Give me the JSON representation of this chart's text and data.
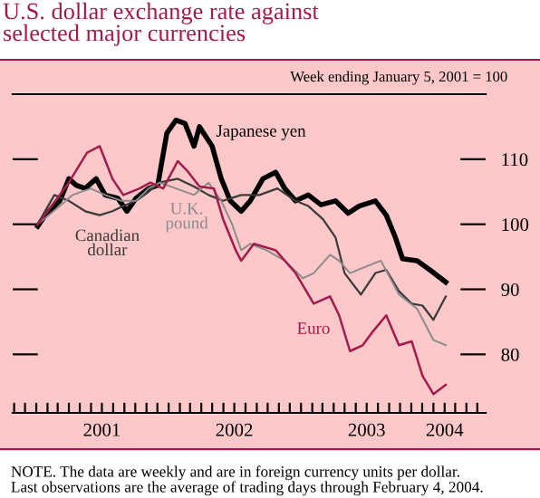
{
  "chart_data": {
    "type": "line",
    "title": "U.S. dollar exchange rate against\nselected major currencies",
    "subtitle": "Week ending January 5, 2001 = 100",
    "annotations": [
      "NOTE. The data are weekly and are in foreign currency units per dollar.\nLast observations are the average of trading days through February 4, 2004."
    ],
    "xlim": [
      "2000-10-28",
      "2004-05-24"
    ],
    "xticks": [
      {
        "value": "2000-11-01",
        "label": null
      },
      {
        "value": "2000-12-01",
        "label": null
      },
      {
        "value": "2001-01-01",
        "label": null
      },
      {
        "value": "2001-02-01",
        "label": null
      },
      {
        "value": "2001-03-01",
        "label": null
      },
      {
        "value": "2001-04-01",
        "label": null
      },
      {
        "value": "2001-05-01",
        "label": null
      },
      {
        "value": "2001-06-01",
        "label": null
      },
      {
        "value": "2001-07-01",
        "label": "2001"
      },
      {
        "value": "2001-08-01",
        "label": null
      },
      {
        "value": "2001-09-01",
        "label": null
      },
      {
        "value": "2001-10-01",
        "label": null
      },
      {
        "value": "2001-11-01",
        "label": null
      },
      {
        "value": "2001-12-01",
        "label": null
      },
      {
        "value": "2002-01-01",
        "label": null
      },
      {
        "value": "2002-02-01",
        "label": null
      },
      {
        "value": "2002-03-01",
        "label": null
      },
      {
        "value": "2002-04-01",
        "label": null
      },
      {
        "value": "2002-05-01",
        "label": null
      },
      {
        "value": "2002-06-01",
        "label": null
      },
      {
        "value": "2002-07-01",
        "label": "2002"
      },
      {
        "value": "2002-08-01",
        "label": null
      },
      {
        "value": "2002-09-01",
        "label": null
      },
      {
        "value": "2002-10-01",
        "label": null
      },
      {
        "value": "2002-11-01",
        "label": null
      },
      {
        "value": "2002-12-01",
        "label": null
      },
      {
        "value": "2003-01-01",
        "label": null
      },
      {
        "value": "2003-02-01",
        "label": null
      },
      {
        "value": "2003-03-01",
        "label": null
      },
      {
        "value": "2003-04-01",
        "label": null
      },
      {
        "value": "2003-05-01",
        "label": null
      },
      {
        "value": "2003-06-01",
        "label": null
      },
      {
        "value": "2003-07-01",
        "label": "2003"
      },
      {
        "value": "2003-08-01",
        "label": null
      },
      {
        "value": "2003-09-01",
        "label": null
      },
      {
        "value": "2003-10-01",
        "label": null
      },
      {
        "value": "2003-11-01",
        "label": null
      },
      {
        "value": "2003-12-01",
        "label": null
      },
      {
        "value": "2004-01-01",
        "label": null
      },
      {
        "value": "2004-02-01",
        "label": "2004"
      },
      {
        "value": "2004-03-01",
        "label": null
      },
      {
        "value": "2004-04-01",
        "label": null
      },
      {
        "value": "2004-05-01",
        "label": null
      }
    ],
    "ylim": [
      71,
      120
    ],
    "yticks": [
      80,
      90,
      100,
      110
    ],
    "grid": false,
    "legend": false,
    "marker": "none",
    "line_style": "solid",
    "series": [
      {
        "name": "Japanese yen",
        "color": "#000000",
        "x": [
          "2001-01-05",
          "2001-01-26",
          "2001-03-07",
          "2001-04-01",
          "2001-04-21",
          "2001-05-16",
          "2001-06-15",
          "2001-07-10",
          "2001-08-14",
          "2001-09-08",
          "2001-10-03",
          "2001-11-07",
          "2001-12-02",
          "2001-12-27",
          "2002-01-21",
          "2002-02-15",
          "2002-03-12",
          "2002-03-27",
          "2002-05-01",
          "2002-05-26",
          "2002-06-20",
          "2002-07-20",
          "2002-08-14",
          "2002-09-18",
          "2002-10-23",
          "2002-11-17",
          "2002-12-17",
          "2003-01-21",
          "2003-02-25",
          "2003-04-06",
          "2003-05-11",
          "2003-06-10",
          "2003-07-25",
          "2003-08-24",
          "2003-09-18",
          "2003-10-08",
          "2003-11-17",
          "2003-12-22",
          "2004-02-04"
        ],
        "values": [
          99.7,
          101.4,
          103.6,
          107,
          106,
          105.5,
          107,
          104.5,
          104,
          102,
          104,
          105.5,
          106,
          114,
          116,
          115.5,
          112,
          115,
          112,
          107,
          103.6,
          102,
          103.6,
          107,
          108,
          105.5,
          103.6,
          104.5,
          103,
          103.6,
          101.7,
          102.8,
          103.6,
          101.4,
          98,
          94.7,
          94.4,
          93,
          91.1
        ]
      },
      {
        "name": "Canadian dollar",
        "color": "#3a3a3a",
        "x": [
          "2001-01-05",
          "2001-02-20",
          "2001-04-01",
          "2001-05-16",
          "2001-06-25",
          "2001-07-30",
          "2001-08-29",
          "2001-10-03",
          "2001-11-07",
          "2001-12-07",
          "2002-01-26",
          "2002-03-12",
          "2002-04-21",
          "2002-05-31",
          "2002-07-20",
          "2002-09-08",
          "2002-10-28",
          "2002-12-17",
          "2003-01-21",
          "2003-03-02",
          "2003-04-06",
          "2003-05-01",
          "2003-06-15",
          "2003-07-25",
          "2003-08-24",
          "2003-09-28",
          "2003-11-02",
          "2003-12-02",
          "2004-01-01",
          "2004-02-04"
        ],
        "values": [
          100,
          104.5,
          103.6,
          102,
          101.4,
          102,
          102.8,
          103.6,
          105,
          106.4,
          107,
          105.8,
          104.5,
          103.6,
          104.5,
          104.5,
          105.5,
          103.6,
          102.8,
          100.8,
          98,
          92.5,
          89.2,
          92.5,
          93,
          89.7,
          87.8,
          87.5,
          85.3,
          88.9
        ]
      },
      {
        "name": "U.K. pound",
        "color": "#8a8a8a",
        "x": [
          "2001-01-05",
          "2001-03-07",
          "2001-04-11",
          "2001-05-31",
          "2001-07-10",
          "2001-08-24",
          "2001-10-03",
          "2001-11-07",
          "2001-12-07",
          "2002-01-21",
          "2002-03-12",
          "2002-04-21",
          "2002-05-26",
          "2002-06-25",
          "2002-07-20",
          "2002-08-14",
          "2002-09-28",
          "2002-11-17",
          "2003-01-06",
          "2003-02-05",
          "2003-03-22",
          "2003-04-16",
          "2003-05-16",
          "2003-06-20",
          "2003-08-09",
          "2003-09-28",
          "2003-11-17",
          "2004-01-01",
          "2004-02-04"
        ],
        "values": [
          100,
          102.8,
          104.5,
          105.5,
          104.5,
          103.6,
          103.6,
          105.5,
          106.4,
          105.5,
          104.5,
          106.4,
          103.6,
          100,
          96,
          97,
          96,
          94.4,
          91.7,
          92.5,
          95.3,
          94.4,
          92.5,
          93.3,
          94.4,
          89.2,
          87,
          82.2,
          81.4
        ]
      },
      {
        "name": "Euro",
        "color": "#a31a4d",
        "x": [
          "2001-01-05",
          "2001-03-27",
          "2001-05-21",
          "2001-06-25",
          "2001-07-30",
          "2001-08-29",
          "2001-10-13",
          "2001-11-12",
          "2001-12-17",
          "2002-01-26",
          "2002-02-20",
          "2002-03-27",
          "2002-05-06",
          "2002-05-31",
          "2002-07-05",
          "2002-07-20",
          "2002-08-24",
          "2002-10-23",
          "2002-12-17",
          "2003-02-05",
          "2003-03-22",
          "2003-04-16",
          "2003-05-16",
          "2003-06-20",
          "2003-07-15",
          "2003-08-24",
          "2003-09-28",
          "2003-11-02",
          "2003-12-02",
          "2004-01-01",
          "2004-02-04"
        ],
        "values": [
          100,
          106,
          111,
          112,
          107,
          104.5,
          105.5,
          106.4,
          105.5,
          109.7,
          108.3,
          105.8,
          105.5,
          100.8,
          96,
          94.4,
          97,
          96,
          92.5,
          87.8,
          88.9,
          86,
          80.5,
          81.4,
          83.3,
          86,
          81.4,
          82,
          76.7,
          73.9,
          75.3
        ]
      }
    ]
  }
}
